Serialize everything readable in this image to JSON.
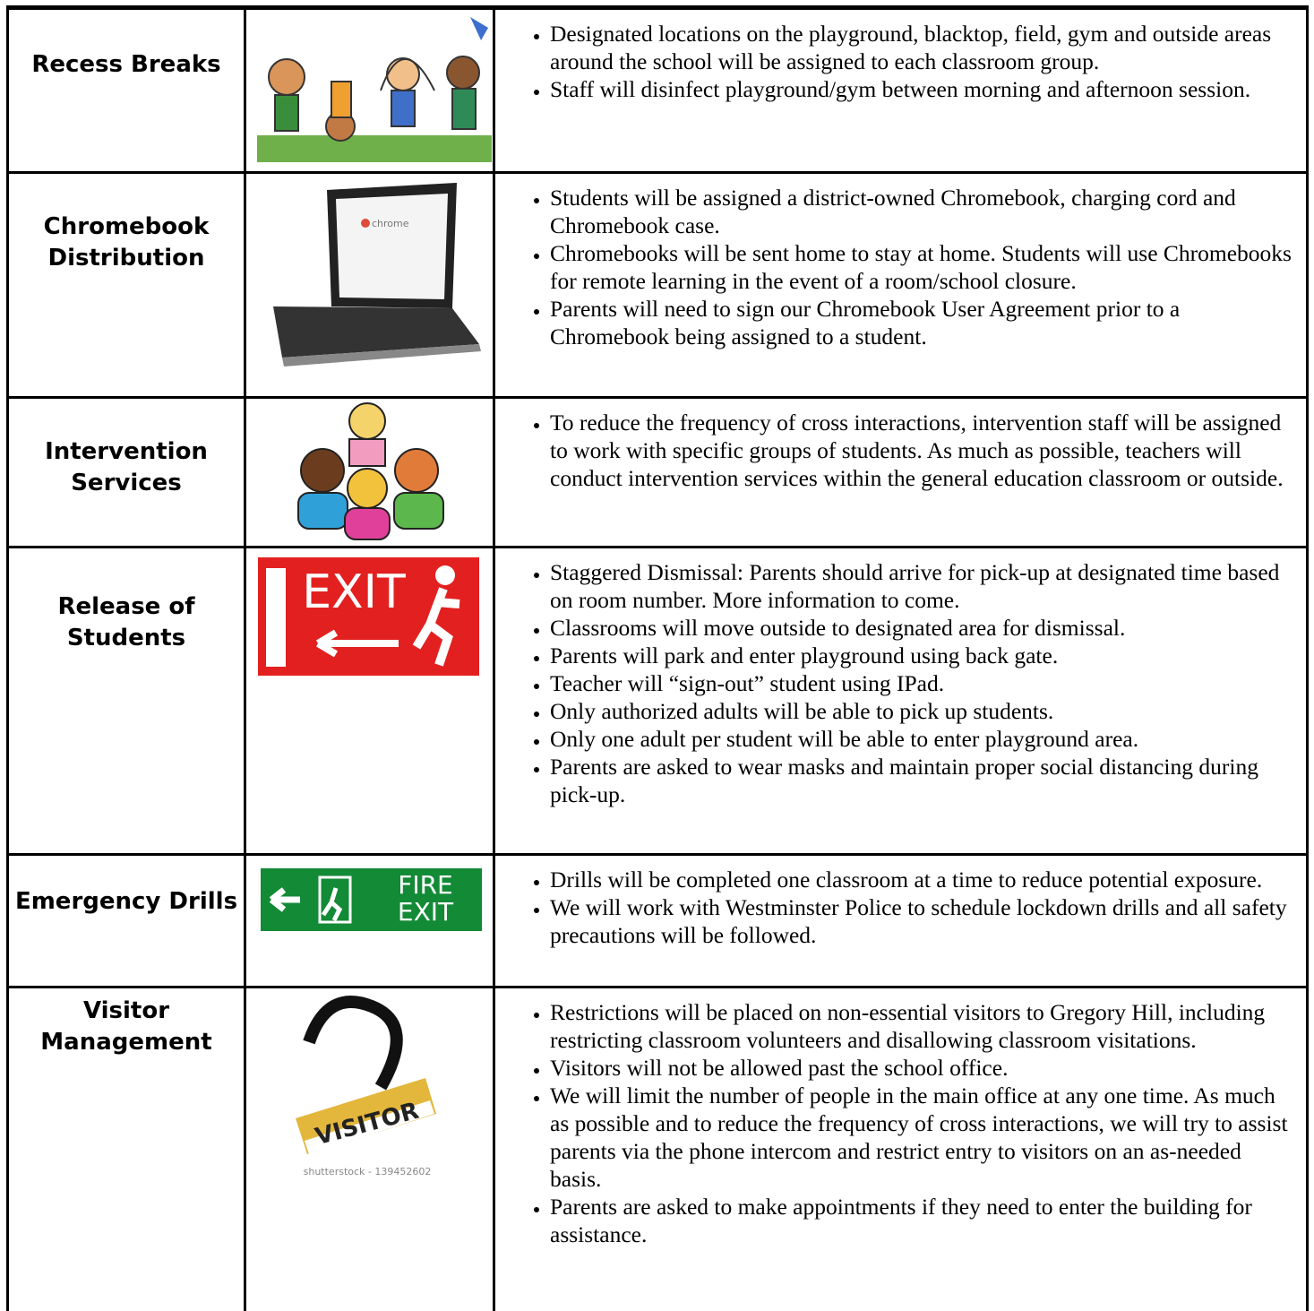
{
  "rows": [
    {
      "label": "Recess Breaks",
      "bullets": [
        "Designated locations on the playground, blacktop, field, gym and outside areas around the school will be assigned to each classroom group.",
        "Staff will disinfect playground/gym between morning and afternoon session."
      ]
    },
    {
      "label": "Chromebook Distribution",
      "image_text": [
        "chrome"
      ],
      "bullets": [
        "Students will be assigned a district-owned Chromebook, charging cord and Chromebook case.",
        "Chromebooks will be sent home to stay at home. Students will use Chromebooks for remote learning in the event of a room/school closure.",
        "Parents will need to sign our Chromebook User Agreement prior to a Chromebook being assigned to a student."
      ]
    },
    {
      "label": "Intervention Services",
      "bullets": [
        "To reduce the frequency of cross interactions, intervention staff will be assigned to work with specific groups of students.  As much as possible, teachers will conduct intervention services within the general education classroom or outside."
      ]
    },
    {
      "label": "Release of Students",
      "image_text": [
        "EXIT"
      ],
      "bullets": [
        "Staggered Dismissal: Parents should arrive for pick-up at designated time based on room number. More information to come.",
        "Classrooms will move outside to designated area for dismissal.",
        "Parents will park and enter playground using back gate.",
        "Teacher will “sign-out” student using IPad.",
        "Only authorized adults will be able to pick up students.",
        "Only one adult per student will be able to enter playground area.",
        "Parents are asked to wear masks and maintain proper social distancing during pick-up."
      ]
    },
    {
      "label": "Emergency Drills",
      "image_text": [
        "FIRE",
        "EXIT"
      ],
      "bullets": [
        "Drills will be completed one classroom at a time to reduce potential exposure.",
        "We will work with Westminster Police to schedule lockdown drills and all safety precautions will be followed."
      ]
    },
    {
      "label": "Visitor Management",
      "image_text": [
        "VISITOR",
        "shutterstock - 139452602"
      ],
      "bullets": [
        "Restrictions will be placed on non-essential visitors to Gregory Hill, including restricting classroom volunteers and disallowing classroom visitations.",
        "Visitors will not be allowed past the school office.",
        "We will limit the number of people in the main office at any one time. As much as possible and to reduce the frequency of cross interactions, we will try to assist parents via the phone intercom and restrict entry to visitors on an as-needed basis.",
        "Parents are asked to make appointments if they need to enter the building for assistance."
      ]
    }
  ]
}
